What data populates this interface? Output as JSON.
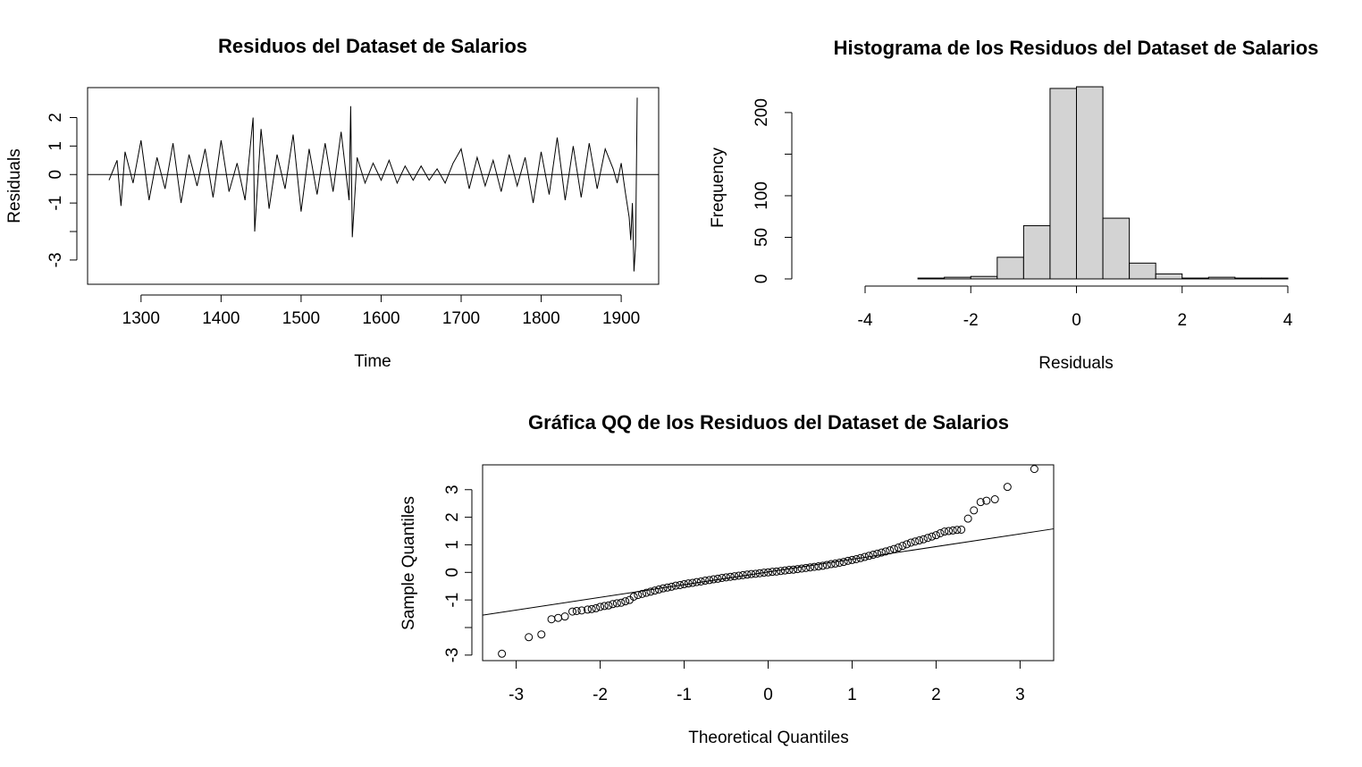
{
  "chart_data": [
    {
      "type": "line",
      "title": "Residuos del Dataset de Salarios",
      "xlabel": "Time",
      "ylabel": "Residuals",
      "xlim": [
        1260,
        1920
      ],
      "ylim": [
        -3.6,
        2.8
      ],
      "x_ticks": [
        1300,
        1400,
        1500,
        1600,
        1700,
        1800,
        1900
      ],
      "x_tick_labels": [
        "1300",
        "1400",
        "1500",
        "1600",
        "1700",
        "1800",
        "1900"
      ],
      "y_ticks": [
        -3,
        -2,
        -1,
        0,
        1,
        2
      ],
      "y_tick_labels": [
        "-3",
        "",
        "-1",
        "0",
        "1",
        "2"
      ],
      "hline": 0,
      "series": [
        {
          "x": [
            1260,
            1270,
            1275,
            1280,
            1290,
            1300,
            1310,
            1320,
            1330,
            1340,
            1350,
            1360,
            1370,
            1380,
            1390,
            1400,
            1410,
            1420,
            1430,
            1440,
            1442,
            1450,
            1460,
            1470,
            1480,
            1490,
            1500,
            1510,
            1520,
            1530,
            1540,
            1550,
            1560,
            1562,
            1564,
            1570,
            1580,
            1590,
            1600,
            1610,
            1620,
            1630,
            1640,
            1650,
            1660,
            1670,
            1680,
            1690,
            1700,
            1710,
            1720,
            1730,
            1740,
            1750,
            1760,
            1770,
            1780,
            1790,
            1800,
            1810,
            1820,
            1830,
            1840,
            1850,
            1860,
            1870,
            1880,
            1890,
            1895,
            1900,
            1905,
            1910,
            1912,
            1914,
            1916,
            1918,
            1920
          ],
          "values": [
            -0.2,
            0.5,
            -1.1,
            0.8,
            -0.3,
            1.2,
            -0.9,
            0.6,
            -0.5,
            1.1,
            -1.0,
            0.7,
            -0.4,
            0.9,
            -0.8,
            1.2,
            -0.6,
            0.4,
            -0.9,
            2.0,
            -2.0,
            1.6,
            -1.2,
            0.7,
            -0.5,
            1.4,
            -1.3,
            0.9,
            -0.7,
            1.1,
            -0.6,
            1.5,
            -0.9,
            2.4,
            -2.2,
            0.6,
            -0.3,
            0.4,
            -0.2,
            0.5,
            -0.3,
            0.3,
            -0.2,
            0.3,
            -0.2,
            0.2,
            -0.3,
            0.4,
            0.9,
            -0.5,
            0.6,
            -0.4,
            0.5,
            -0.6,
            0.7,
            -0.4,
            0.6,
            -1.0,
            0.8,
            -0.7,
            1.3,
            -0.9,
            1.0,
            -0.8,
            1.1,
            -0.5,
            0.9,
            0.2,
            -0.3,
            0.4,
            -0.6,
            -1.5,
            -2.3,
            -1.0,
            -3.4,
            -2.5,
            2.7
          ]
        }
      ]
    },
    {
      "type": "bar",
      "title": "Histograma de los Residuos del Dataset de Salarios",
      "xlabel": "Residuals",
      "ylabel": "Frequency",
      "xlim": [
        -4,
        4
      ],
      "ylim": [
        0,
        230
      ],
      "x_ticks": [
        -4,
        -2,
        0,
        2,
        4
      ],
      "x_tick_labels": [
        "-4",
        "-2",
        "0",
        "2",
        "4"
      ],
      "y_ticks": [
        0,
        50,
        100,
        150,
        200
      ],
      "y_tick_labels": [
        "0",
        "50",
        "100",
        "",
        "200"
      ],
      "bins": [
        [
          -3,
          -2.5
        ],
        [
          -2.5,
          -2
        ],
        [
          -2,
          -1.5
        ],
        [
          -1.5,
          -1
        ],
        [
          -1,
          -0.5
        ],
        [
          -0.5,
          0
        ],
        [
          0,
          0.5
        ],
        [
          0.5,
          1
        ],
        [
          1,
          1.5
        ],
        [
          1.5,
          2
        ],
        [
          2,
          2.5
        ],
        [
          2.5,
          3
        ],
        [
          3,
          3.5
        ],
        [
          3.5,
          4
        ]
      ],
      "values": [
        1,
        2,
        3,
        26,
        64,
        229,
        231,
        73,
        19,
        6,
        1,
        2,
        1,
        1
      ]
    },
    {
      "type": "scatter",
      "title": "Gráfica QQ de los Residuos del Dataset de Salarios",
      "xlabel": "Theoretical Quantiles",
      "ylabel": "Sample Quantiles",
      "xlim": [
        -3.4,
        3.4
      ],
      "ylim": [
        -3.2,
        3.9
      ],
      "x_ticks": [
        -3,
        -2,
        -1,
        0,
        1,
        2,
        3
      ],
      "x_tick_labels": [
        "-3",
        "-2",
        "-1",
        "0",
        "1",
        "2",
        "3"
      ],
      "y_ticks": [
        -3,
        -2,
        -1,
        0,
        1,
        2,
        3
      ],
      "y_tick_labels": [
        "-3",
        "",
        "-1",
        "0",
        "1",
        "2",
        "3"
      ],
      "reference_line": {
        "x": [
          -3.4,
          3.4
        ],
        "y": [
          -1.55,
          1.58
        ]
      },
      "series": [
        {
          "x": [
            -3.17,
            -2.85,
            -2.7,
            -2.58,
            -2.5,
            -2.42,
            -2.33,
            -2.28,
            -2.22,
            -2.15,
            -2.1,
            -2.05,
            -2.0,
            -1.95,
            -1.9,
            -1.85,
            -1.8,
            -1.75,
            -1.7,
            -1.65,
            -1.6,
            -1.55,
            -1.5,
            -1.45,
            -1.4,
            -1.35,
            -1.3,
            -1.25,
            -1.2,
            -1.15,
            -1.1,
            -1.05,
            -1.0,
            -0.95,
            -0.9,
            -0.85,
            -0.8,
            -0.75,
            -0.7,
            -0.65,
            -0.6,
            -0.55,
            -0.5,
            -0.45,
            -0.4,
            -0.35,
            -0.3,
            -0.25,
            -0.2,
            -0.15,
            -0.1,
            -0.05,
            0,
            0.05,
            0.1,
            0.15,
            0.2,
            0.25,
            0.3,
            0.35,
            0.4,
            0.45,
            0.5,
            0.55,
            0.6,
            0.65,
            0.7,
            0.75,
            0.8,
            0.85,
            0.9,
            0.95,
            1.0,
            1.05,
            1.1,
            1.15,
            1.2,
            1.25,
            1.3,
            1.35,
            1.4,
            1.45,
            1.5,
            1.55,
            1.6,
            1.65,
            1.7,
            1.75,
            1.8,
            1.85,
            1.9,
            1.95,
            2.0,
            2.05,
            2.1,
            2.15,
            2.2,
            2.25,
            2.3,
            2.38,
            2.45,
            2.53,
            2.6,
            2.7,
            2.85,
            3.17
          ],
          "values": [
            -2.95,
            -2.35,
            -2.25,
            -1.7,
            -1.65,
            -1.6,
            -1.42,
            -1.4,
            -1.38,
            -1.35,
            -1.33,
            -1.3,
            -1.25,
            -1.22,
            -1.2,
            -1.15,
            -1.12,
            -1.1,
            -1.05,
            -1.0,
            -0.88,
            -0.82,
            -0.78,
            -0.74,
            -0.7,
            -0.66,
            -0.62,
            -0.58,
            -0.55,
            -0.52,
            -0.48,
            -0.46,
            -0.43,
            -0.4,
            -0.38,
            -0.35,
            -0.33,
            -0.3,
            -0.28,
            -0.25,
            -0.23,
            -0.2,
            -0.18,
            -0.16,
            -0.14,
            -0.12,
            -0.1,
            -0.08,
            -0.06,
            -0.05,
            -0.03,
            -0.01,
            0,
            0.02,
            0.03,
            0.05,
            0.07,
            0.09,
            0.1,
            0.12,
            0.14,
            0.16,
            0.18,
            0.2,
            0.22,
            0.24,
            0.27,
            0.3,
            0.32,
            0.35,
            0.38,
            0.42,
            0.45,
            0.48,
            0.52,
            0.56,
            0.6,
            0.64,
            0.68,
            0.72,
            0.76,
            0.8,
            0.85,
            0.9,
            0.96,
            1.02,
            1.08,
            1.12,
            1.16,
            1.2,
            1.25,
            1.3,
            1.35,
            1.42,
            1.48,
            1.5,
            1.52,
            1.54,
            1.55,
            1.95,
            2.25,
            2.55,
            2.6,
            2.65,
            3.1,
            3.75
          ]
        }
      ]
    }
  ]
}
